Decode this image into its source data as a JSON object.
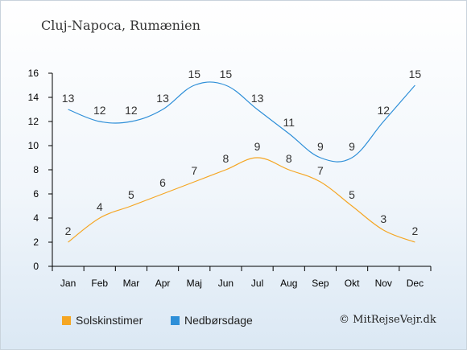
{
  "title": "Cluj-Napoca, Rumænien",
  "credit": "© MitRejseVejr.dk",
  "chart_data": {
    "type": "line",
    "categories": [
      "Jan",
      "Feb",
      "Mar",
      "Apr",
      "Maj",
      "Jun",
      "Jul",
      "Aug",
      "Sep",
      "Okt",
      "Nov",
      "Dec"
    ],
    "ylim": [
      0,
      16
    ],
    "yticks": [
      "0",
      "2",
      "4",
      "6",
      "8",
      "10",
      "12",
      "14",
      "16"
    ],
    "grid": false,
    "legend_position": "bottom-left",
    "series": [
      {
        "name": "Solskinstimer",
        "color": "#f5a623",
        "values": [
          2,
          4,
          5,
          6,
          7,
          8,
          9,
          8,
          7,
          5,
          3,
          2
        ]
      },
      {
        "name": "Nedbørsdage",
        "color": "#2e8fd8",
        "values": [
          13,
          12,
          12,
          13,
          15,
          15,
          13,
          11,
          9,
          9,
          12,
          15
        ]
      }
    ]
  }
}
